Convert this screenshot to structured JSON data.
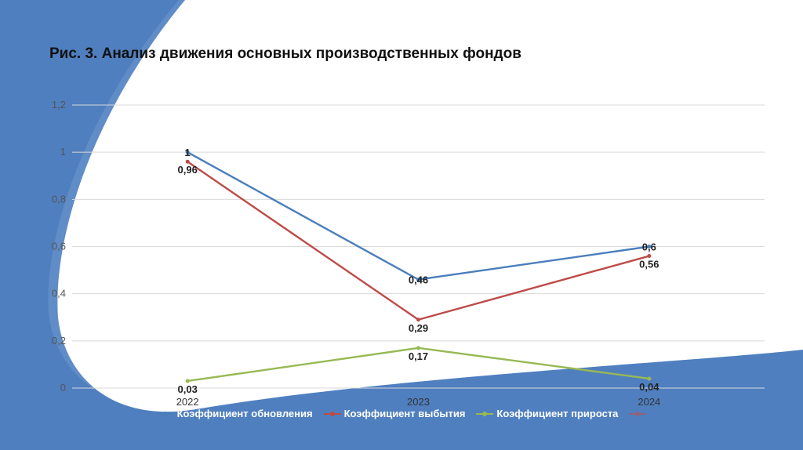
{
  "title": "Рис. 3. Анализ движения основных производственных фондов",
  "colors": {
    "bg_blue": "#4f7fbf",
    "bg_blue_light": "#6f97cd",
    "grid": "#d9d9d9"
  },
  "chart_data": {
    "type": "line",
    "categories": [
      "2022",
      "2023",
      "2024"
    ],
    "y_ticks": [
      "0",
      "0,2",
      "0,4",
      "0,6",
      "0,8",
      "1",
      "1,2"
    ],
    "ylim": [
      0,
      1.2
    ],
    "grid": true,
    "legend_position": "bottom",
    "series": [
      {
        "name": "Коэффициент обновления",
        "color": "#4a7ebb",
        "values": [
          1,
          0.46,
          0.6
        ],
        "labels": [
          "1",
          "0,46",
          "0,6"
        ]
      },
      {
        "name": "Коэффициент выбытия",
        "color": "#be4b48",
        "values": [
          0.96,
          0.29,
          0.56
        ],
        "labels": [
          "0,96",
          "0,29",
          "0,56"
        ]
      },
      {
        "name": "Коэффициент прироста",
        "color": "#98b954",
        "values": [
          0.03,
          0.17,
          0.04
        ],
        "labels": [
          "0,03",
          "0,17",
          "0,04"
        ]
      }
    ],
    "extra_legend_marker_color": "#c0504d"
  }
}
